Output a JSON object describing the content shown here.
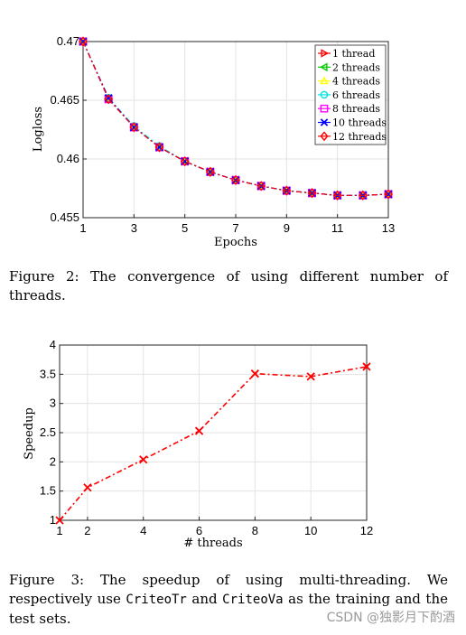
{
  "chart_data": [
    {
      "type": "line",
      "xlabel": "Epochs",
      "ylabel": "Logloss",
      "xlim": [
        1,
        13
      ],
      "ylim": [
        0.455,
        0.47
      ],
      "xticks": [
        "1",
        "3",
        "5",
        "7",
        "9",
        "11",
        "13"
      ],
      "yticks": [
        "0.455",
        "0.46",
        "0.465",
        "0.47"
      ],
      "grid": true,
      "legend_position": "top-right",
      "x": [
        1,
        2,
        3,
        4,
        5,
        6,
        7,
        8,
        9,
        10,
        11,
        12,
        13
      ],
      "series": [
        {
          "name": "1 thread",
          "color": "#ff0000",
          "marker": "triangle-right",
          "values": [
            0.47,
            0.4651,
            0.4627,
            0.461,
            0.4598,
            0.4589,
            0.4582,
            0.4577,
            0.4573,
            0.4571,
            0.4569,
            0.4569,
            0.457
          ]
        },
        {
          "name": "2 threads",
          "color": "#00cc00",
          "marker": "triangle-left",
          "values": [
            0.47,
            0.4651,
            0.4627,
            0.461,
            0.4598,
            0.4589,
            0.4582,
            0.4577,
            0.4573,
            0.4571,
            0.4569,
            0.4569,
            0.457
          ]
        },
        {
          "name": "4 threads",
          "color": "#ffff00",
          "marker": "triangle-up",
          "values": [
            0.47,
            0.4652,
            0.4627,
            0.4611,
            0.4598,
            0.4589,
            0.4582,
            0.4577,
            0.4573,
            0.4571,
            0.4569,
            0.4569,
            0.457
          ]
        },
        {
          "name": "6 threads",
          "color": "#00e5e5",
          "marker": "circle",
          "values": [
            0.47,
            0.4652,
            0.4628,
            0.4611,
            0.4598,
            0.4589,
            0.4582,
            0.4577,
            0.4573,
            0.4571,
            0.4569,
            0.4569,
            0.457
          ]
        },
        {
          "name": "8 threads",
          "color": "#ff00ff",
          "marker": "square",
          "values": [
            0.47,
            0.4651,
            0.4627,
            0.461,
            0.4598,
            0.4589,
            0.4582,
            0.4577,
            0.4573,
            0.4571,
            0.4569,
            0.4569,
            0.457
          ]
        },
        {
          "name": "10 threads",
          "color": "#0000ff",
          "marker": "x",
          "values": [
            0.47,
            0.4652,
            0.4627,
            0.461,
            0.4598,
            0.4589,
            0.4582,
            0.4577,
            0.4573,
            0.4571,
            0.4569,
            0.4569,
            0.457
          ]
        },
        {
          "name": "12 threads",
          "color": "#ff0000",
          "marker": "diamond",
          "values": [
            0.47,
            0.4651,
            0.4627,
            0.461,
            0.4598,
            0.4589,
            0.4582,
            0.4577,
            0.4573,
            0.4571,
            0.4569,
            0.4569,
            0.457
          ]
        }
      ]
    },
    {
      "type": "line",
      "xlabel": "# threads",
      "ylabel": "Speedup",
      "xlim": [
        1,
        12
      ],
      "ylim": [
        1,
        4
      ],
      "xticks": [
        "1",
        "2",
        "4",
        "6",
        "8",
        "10",
        "12"
      ],
      "yticks": [
        "1",
        "1.5",
        "2",
        "2.5",
        "3",
        "3.5",
        "4"
      ],
      "grid": true,
      "x": [
        1,
        2,
        4,
        6,
        8,
        10,
        12
      ],
      "series": [
        {
          "color": "#ff0000",
          "marker": "x",
          "values": [
            1.0,
            1.56,
            2.04,
            2.53,
            3.51,
            3.46,
            3.63
          ]
        }
      ]
    }
  ],
  "captions": {
    "fig2": "Figure 2:  The convergence of using different number of threads.",
    "fig3_part1": "Figure 3: The speedup of using multi-threading. We respectively use ",
    "fig3_code1": "CriteoTr",
    "fig3_part2": " and ",
    "fig3_code2": "CriteoVa",
    "fig3_part3": " as the training and the test sets."
  },
  "watermark": "CSDN @独影月下酌酒"
}
